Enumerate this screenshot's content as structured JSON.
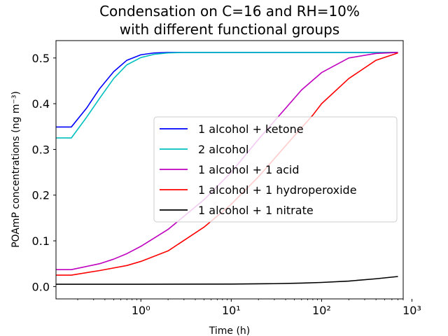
{
  "chart_data": {
    "type": "line",
    "title": [
      "Condensation on C=16 and RH=10%",
      "with different functional groups"
    ],
    "xlabel": "Time (h)",
    "ylabel": "POAmP concentrations (ng m⁻³)",
    "xscale": "log",
    "xlim": [
      0.115,
      800
    ],
    "ylim": [
      -0.027,
      0.538
    ],
    "xticks": [
      {
        "value": 1,
        "label": "10⁰"
      },
      {
        "value": 10,
        "label": "10¹"
      },
      {
        "value": 100,
        "label": "10²"
      },
      {
        "value": 1000,
        "label": "10³"
      }
    ],
    "yticks": [
      0.0,
      0.1,
      0.2,
      0.3,
      0.4,
      0.5
    ],
    "ytick_labels": [
      "0.0",
      "0.1",
      "0.2",
      "0.3",
      "0.4",
      "0.5"
    ],
    "grid": false,
    "legend_position": "center-right",
    "series": [
      {
        "name": "1 alcohol + ketone",
        "color": "#0000ff",
        "x": [
          0.115,
          0.17,
          0.25,
          0.35,
          0.5,
          0.7,
          1.0,
          1.4,
          2,
          5,
          20,
          100,
          700
        ],
        "y": [
          0.349,
          0.349,
          0.39,
          0.433,
          0.47,
          0.495,
          0.507,
          0.511,
          0.512,
          0.512,
          0.512,
          0.512,
          0.512
        ]
      },
      {
        "name": "2 alcohol",
        "color": "#00bfbf",
        "x": [
          0.115,
          0.17,
          0.25,
          0.35,
          0.5,
          0.7,
          1.0,
          1.4,
          2,
          3,
          10,
          100,
          700
        ],
        "y": [
          0.325,
          0.325,
          0.37,
          0.412,
          0.455,
          0.485,
          0.501,
          0.508,
          0.511,
          0.512,
          0.512,
          0.512,
          0.512
        ]
      },
      {
        "name": "1 alcohol + 1 acid",
        "color": "#bf00bf",
        "x": [
          0.115,
          0.17,
          0.35,
          0.5,
          0.7,
          1,
          2,
          5,
          10,
          20,
          40,
          60,
          100,
          200,
          400,
          700
        ],
        "y": [
          0.037,
          0.037,
          0.05,
          0.06,
          0.072,
          0.088,
          0.125,
          0.19,
          0.25,
          0.322,
          0.39,
          0.43,
          0.468,
          0.5,
          0.51,
          0.512
        ]
      },
      {
        "name": "1 alcohol + 1 hydroperoxide",
        "color": "#ff0000",
        "x": [
          0.115,
          0.17,
          0.35,
          0.7,
          1,
          2,
          5,
          10,
          20,
          50,
          80,
          100,
          200,
          400,
          700
        ],
        "y": [
          0.025,
          0.025,
          0.035,
          0.046,
          0.055,
          0.078,
          0.13,
          0.18,
          0.24,
          0.33,
          0.375,
          0.4,
          0.455,
          0.495,
          0.511
        ]
      },
      {
        "name": "1 alcohol + 1 nitrate",
        "color": "#000000",
        "x": [
          0.115,
          1,
          10,
          30,
          60,
          100,
          200,
          400,
          700
        ],
        "y": [
          0.005,
          0.005,
          0.0055,
          0.0063,
          0.0075,
          0.009,
          0.012,
          0.017,
          0.022
        ]
      }
    ]
  }
}
